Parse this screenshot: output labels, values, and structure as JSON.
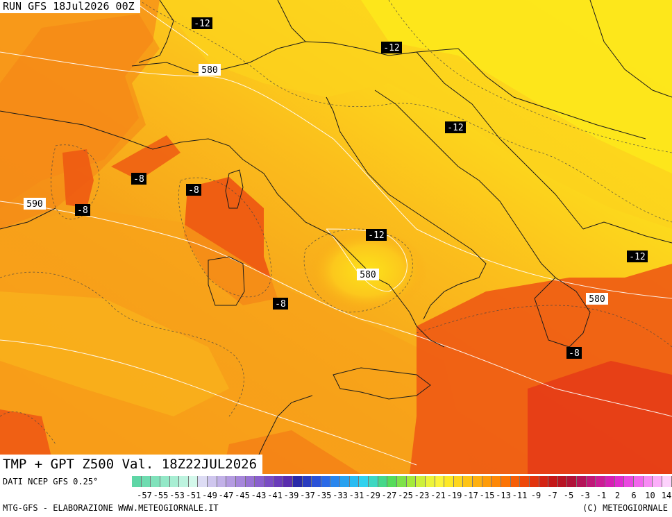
{
  "header": {
    "run_label": "RUN GFS 18Jul2026 00Z"
  },
  "map": {
    "title": "TMP + GPT Z500 Val. 18Z22JUL2026",
    "temp_labels": [
      "-12",
      "-12",
      "-12",
      "-12",
      "-12",
      "-8",
      "-8",
      "-8",
      "-8",
      "-8"
    ],
    "geopotential_labels": [
      "580",
      "590",
      "580",
      "580"
    ]
  },
  "legend": {
    "source_text": "DATI NCEP GFS 0.25°",
    "colors": [
      "#5fd6a6",
      "#6fdcb0",
      "#80e2bb",
      "#93e8c7",
      "#a8eed3",
      "#bdf3df",
      "#d4f8eb",
      "#dddcf4",
      "#cfc6ee",
      "#c2b1e8",
      "#b49be1",
      "#a686db",
      "#9872d4",
      "#8a5fcd",
      "#7a4cc4",
      "#6a3bba",
      "#5a2dae",
      "#2a2aa8",
      "#2a3cc0",
      "#2a52d8",
      "#2a6ae8",
      "#2a86ee",
      "#2aa2f0",
      "#2abcf2",
      "#32d2ee",
      "#3ed8c2",
      "#46d88a",
      "#56dc5a",
      "#7ee24a",
      "#a4ea3c",
      "#cdf03a",
      "#ecf43a",
      "#fbf43a",
      "#fde826",
      "#fed61e",
      "#fec416",
      "#feb010",
      "#fe9c0a",
      "#fe8806",
      "#fc7404",
      "#f65e06",
      "#ee480a",
      "#e2340e",
      "#d42414",
      "#c41818",
      "#b81424",
      "#b01238",
      "#b41458",
      "#c01878",
      "#cc1c96",
      "#d620b4",
      "#e02cce",
      "#ea48e0",
      "#f266ec",
      "#f88af4",
      "#fcaefa",
      "#fdd2fc"
    ],
    "labels": [
      "-57",
      "-55",
      "-53",
      "-51",
      "-49",
      "-47",
      "-45",
      "-43",
      "-41",
      "-39",
      "-37",
      "-35",
      "-33",
      "-31",
      "-29",
      "-27",
      "-25",
      "-23",
      "-21",
      "-19",
      "-17",
      "-15",
      "-13",
      "-11",
      "-9",
      "-7",
      "-5",
      "-3",
      "-1",
      "2",
      "6",
      "10",
      "14"
    ],
    "bottom_left": "MTG-GFS - ELABORAZIONE WWW.METEOGIORNALE.IT",
    "bottom_right": "(C) METEOGIORNALE"
  }
}
